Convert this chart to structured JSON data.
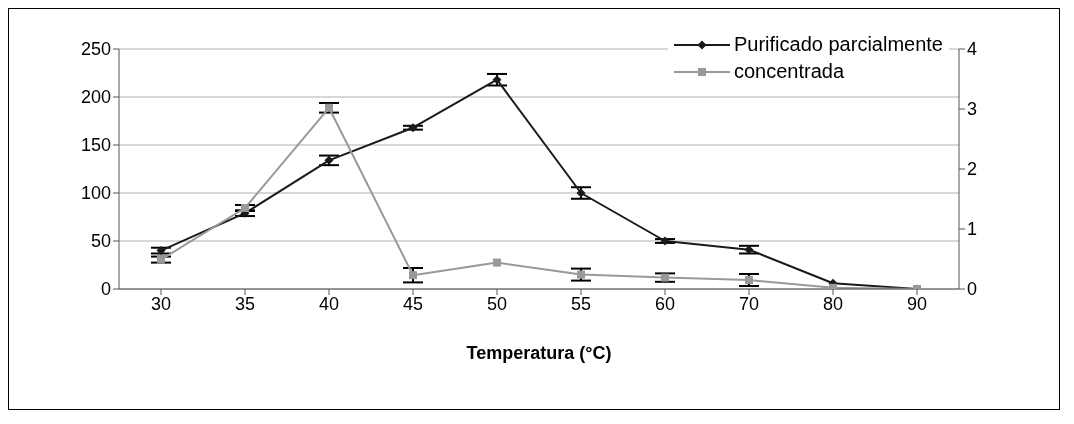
{
  "chart_data": {
    "type": "line",
    "xlabel": "Temperatura (°C)",
    "categories": [
      "30",
      "35",
      "40",
      "45",
      "50",
      "55",
      "60",
      "70",
      "80",
      "90"
    ],
    "series": [
      {
        "name": "Purificado parcialmente",
        "color": "#1a1a1a",
        "marker": "diamond",
        "values": [
          40,
          79,
          134,
          168,
          218,
          100,
          50,
          41,
          6,
          0
        ],
        "errors": [
          3,
          3,
          5,
          2,
          6,
          6,
          2,
          4,
          null,
          null
        ]
      },
      {
        "name": "concentrada",
        "color": "#999999",
        "marker": "square",
        "axis": "y2",
        "values": [
          0.49,
          1.35,
          3.02,
          0.23,
          0.44,
          0.24,
          0.19,
          0.15,
          0.02,
          0
        ],
        "errors": [
          0.05,
          0.05,
          0.08,
          0.12,
          null,
          0.1,
          0.07,
          0.1,
          null,
          null
        ]
      }
    ],
    "ylim": [
      0,
      250
    ],
    "yticks": [
      0,
      50,
      100,
      150,
      200,
      250
    ],
    "y2lim": [
      0,
      4
    ],
    "y2ticks": [
      0,
      1,
      2,
      3,
      4
    ],
    "grid": "y",
    "legend": "top right",
    "line_style": "solid"
  }
}
